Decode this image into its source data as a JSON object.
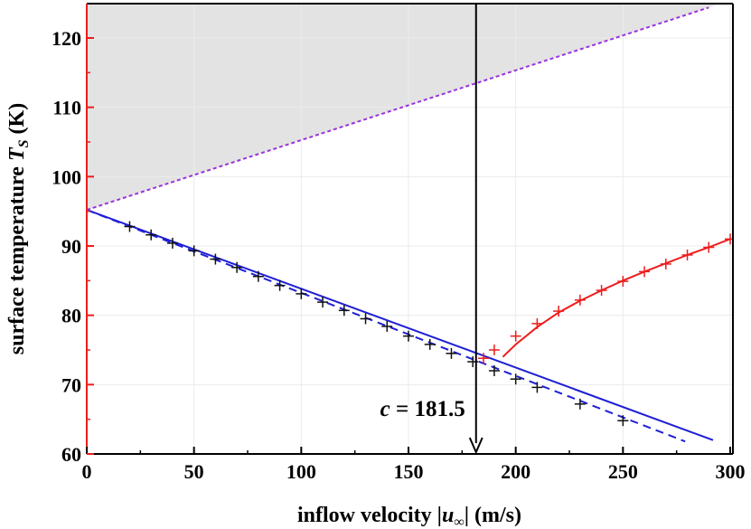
{
  "chart_data": {
    "type": "line",
    "xlabel": {
      "prefix": "inflow velocity |",
      "var": "u",
      "sub": "∞",
      "suffix": "| (m/s)"
    },
    "ylabel": {
      "prefix": "surface temperature ",
      "var": "T",
      "sub": "S",
      "suffix": " (K)"
    },
    "xlim": [
      0,
      300
    ],
    "ylim": [
      60,
      125
    ],
    "xticks": [
      0,
      50,
      100,
      150,
      200,
      250,
      300
    ],
    "yticks": [
      60,
      70,
      80,
      90,
      100,
      110,
      120
    ],
    "grid": true,
    "annotation": {
      "var": "c",
      "text": " = 181.5",
      "x": 181.5
    },
    "series": [
      {
        "kind": "line",
        "style": "solid",
        "color": "#1f1fd6",
        "x": [
          0,
          292
        ],
        "y": [
          95.2,
          62.0
        ]
      },
      {
        "kind": "line",
        "style": "dashed",
        "color": "#1f1fd6",
        "x": [
          0,
          279
        ],
        "y": [
          95.2,
          61.8
        ]
      },
      {
        "kind": "line",
        "style": "dotted",
        "color": "#9933dd",
        "x": [
          0,
          290
        ],
        "y": [
          95.2,
          124.4
        ]
      },
      {
        "kind": "curve",
        "style": "solid",
        "color": "#ee1c1c",
        "x": [
          194,
          200,
          210,
          220,
          230,
          240,
          250,
          260,
          270,
          280,
          290,
          300
        ],
        "y": [
          74.0,
          75.8,
          78.3,
          80.4,
          82.1,
          83.6,
          85.0,
          86.3,
          87.5,
          88.7,
          89.8,
          91.0
        ]
      },
      {
        "kind": "markers",
        "color": "#111111",
        "x": [
          20,
          30,
          40,
          50,
          60,
          70,
          80,
          90,
          100,
          110,
          120,
          130,
          140,
          150,
          160,
          170,
          180,
          190,
          200,
          210,
          230,
          250
        ],
        "y": [
          92.8,
          91.6,
          90.4,
          89.3,
          88.1,
          86.9,
          85.6,
          84.3,
          83.1,
          81.9,
          80.7,
          79.5,
          78.4,
          77.0,
          75.8,
          74.5,
          73.3,
          72.0,
          70.8,
          69.6,
          67.2,
          64.8
        ]
      },
      {
        "kind": "markers",
        "color": "#ee1c1c",
        "x": [
          185,
          190,
          200,
          210,
          220,
          230,
          240,
          250,
          260,
          270,
          280,
          290,
          300
        ],
        "y": [
          73.8,
          75.0,
          77.0,
          78.8,
          80.6,
          82.2,
          83.6,
          84.9,
          86.3,
          87.4,
          88.7,
          89.8,
          91.0
        ]
      }
    ],
    "shaded_region": {
      "color": "#e3e3e3",
      "top": 125,
      "bottom_line": {
        "x": [
          0,
          300
        ],
        "y": [
          95.2,
          125.4
        ]
      }
    }
  }
}
